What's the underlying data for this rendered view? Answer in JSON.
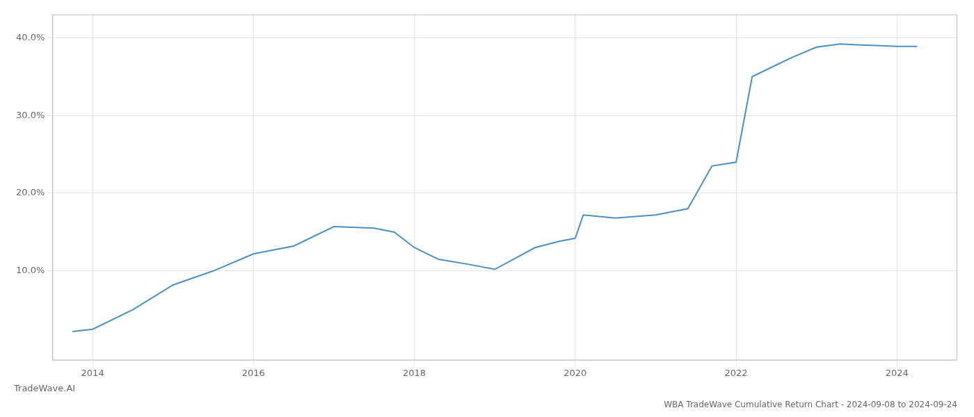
{
  "chart_data": {
    "type": "line",
    "title": "WBA TradeWave Cumulative Return Chart - 2024-09-08 to 2024-09-24",
    "annotations": [
      "TradeWave.AI"
    ],
    "x": [
      2013.75,
      2014.0,
      2014.5,
      2015.0,
      2015.5,
      2016.0,
      2016.5,
      2017.0,
      2017.5,
      2017.75,
      2018.0,
      2018.3,
      2018.7,
      2019.0,
      2019.5,
      2019.8,
      2020.0,
      2020.1,
      2020.5,
      2021.0,
      2021.4,
      2021.7,
      2022.0,
      2022.2,
      2022.5,
      2022.7,
      2023.0,
      2023.3,
      2023.5,
      2023.75,
      2024.0,
      2024.25
    ],
    "values": [
      2.2,
      2.5,
      5.0,
      8.2,
      10.0,
      12.2,
      13.2,
      15.7,
      15.5,
      15.0,
      13.0,
      11.5,
      10.8,
      10.2,
      13.0,
      13.8,
      14.2,
      17.2,
      16.8,
      17.2,
      18.0,
      23.5,
      24.0,
      35.0,
      36.5,
      37.5,
      38.8,
      39.2,
      39.1,
      39.0,
      38.9,
      38.9
    ],
    "color": "#4a90c4",
    "xlim": [
      2013.5,
      2024.75
    ],
    "xticks": [
      2014,
      2016,
      2018,
      2020,
      2022,
      2024
    ],
    "ylim": [
      -1.5,
      43
    ],
    "yticks": [
      {
        "value": 10.0,
        "label": "10.0%"
      },
      {
        "value": 20.0,
        "label": "20.0%"
      },
      {
        "value": 30.0,
        "label": "30.0%"
      },
      {
        "value": 40.0,
        "label": "40.0%"
      }
    ],
    "grid": true
  }
}
